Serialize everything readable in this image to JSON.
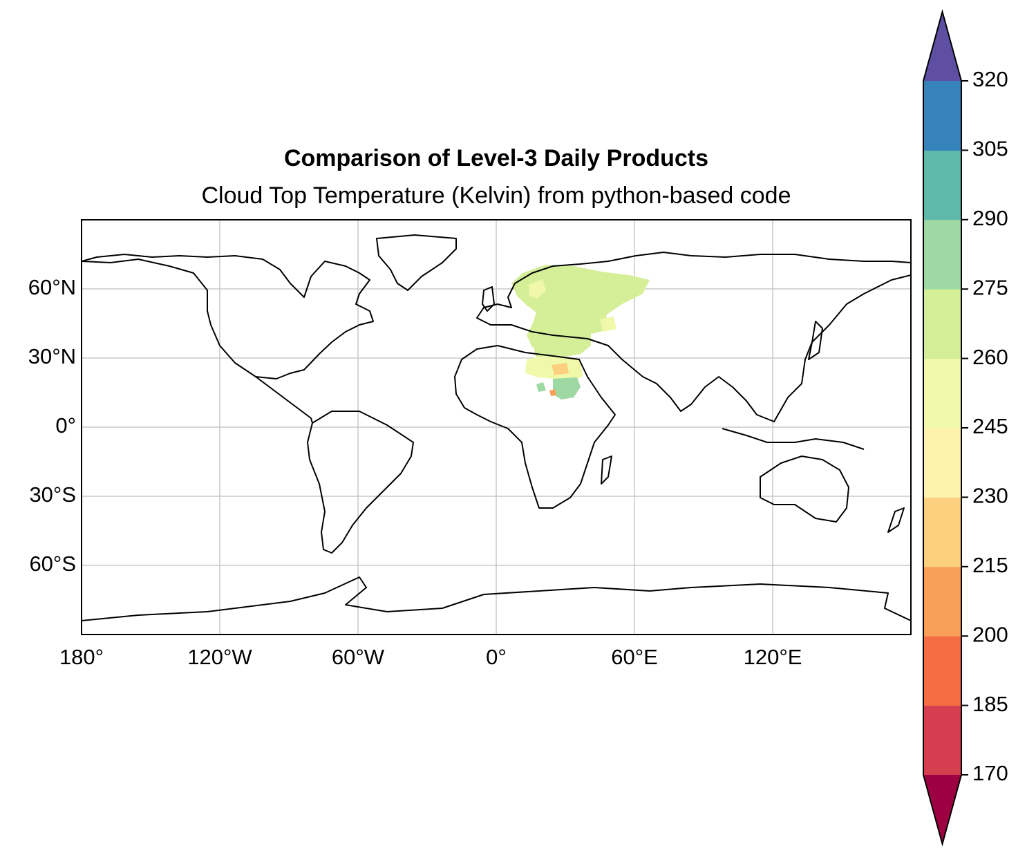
{
  "title": "Comparison of Level-3 Daily Products",
  "subtitle": "Cloud Top Temperature (Kelvin) from python-based code",
  "map": {
    "projection": "PlateCarree",
    "lon_ticks": [
      "180°",
      "120°W",
      "60°W",
      "0°",
      "60°E",
      "120°E"
    ],
    "lat_ticks": [
      "60°N",
      "30°N",
      "0°",
      "30°S",
      "60°S"
    ],
    "gridlines": true,
    "background": "#ffffff",
    "coastline_color": "#000000"
  },
  "colorbar": {
    "ticks": [
      "170",
      "185",
      "200",
      "215",
      "230",
      "245",
      "260",
      "275",
      "290",
      "305",
      "320"
    ],
    "extend": "both",
    "colors": [
      "#9e0142",
      "#d53e4f",
      "#f46d43",
      "#fdae61",
      "#fee08b",
      "#ffffbf",
      "#e6f598",
      "#abdda4",
      "#66c2a5",
      "#3288bd",
      "#5e4fa2"
    ],
    "bin_colors": [
      "#d53e4f",
      "#f46d43",
      "#f99f57",
      "#fdd07f",
      "#fff2ac",
      "#f0f9a9",
      "#d5ee98",
      "#9ed8a2",
      "#5fb9ab",
      "#3682bb"
    ],
    "under_color": "#9e0142",
    "over_color": "#5e4fa2"
  },
  "chart_data": {
    "type": "heatmap",
    "title": "Comparison of Level-3 Daily Products",
    "subtitle": "Cloud Top Temperature (Kelvin) from python-based code",
    "x_range": [
      -180,
      180
    ],
    "y_range": [
      -90,
      90
    ],
    "color_range": [
      170,
      320
    ],
    "levels": [
      170,
      185,
      200,
      215,
      230,
      245,
      260,
      275,
      290,
      305,
      320
    ],
    "data_regions": [
      {
        "region": "Scandinavia / Eastern Europe / Western Russia",
        "approx_value": 265
      },
      {
        "region": "Southern Europe / Turkey",
        "approx_value": 268
      },
      {
        "region": "North Africa / Egypt",
        "approx_value": 252
      },
      {
        "region": "Sudan",
        "approx_value": 285
      },
      {
        "region": "Chad / Sudan spot",
        "approx_value": 225
      }
    ]
  }
}
